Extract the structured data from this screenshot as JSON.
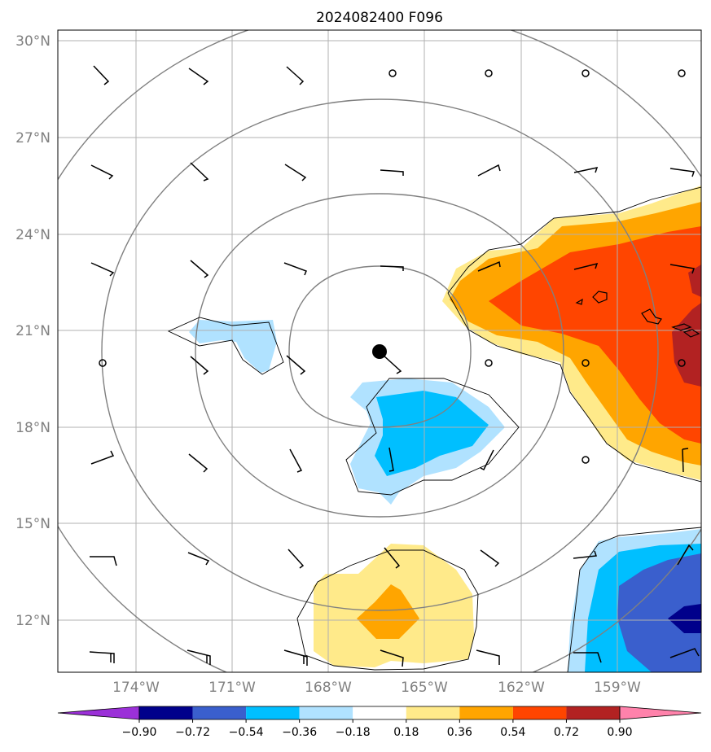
{
  "title": "2024082400 F096",
  "lat_labels": [
    "30°N",
    "27°N",
    "24°N",
    "21°N",
    "18°N",
    "15°N",
    "12°N"
  ],
  "lon_labels": [
    "174°W",
    "171°W",
    "168°W",
    "165°W",
    "162°W",
    "159°W"
  ],
  "map": {
    "lon_range": [
      -176.5,
      -156.5
    ],
    "lat_range": [
      10.5,
      30.3
    ],
    "storm_center": {
      "lon": -166.3,
      "lat": 20.3
    },
    "range_ring_radii_deg": [
      2.8,
      5.6,
      8.4,
      11.2,
      14.0
    ]
  },
  "colorbar": {
    "ticks": [
      "−0.90",
      "−0.72",
      "−0.54",
      "−0.36",
      "−0.18",
      "0.18",
      "0.36",
      "0.54",
      "0.72",
      "0.90"
    ],
    "colors": [
      "#9b30d8",
      "#00008b",
      "#3a5fcd",
      "#00bfff",
      "#b0e2ff",
      "#ffffff",
      "#ffea8a",
      "#ffa500",
      "#ff4500",
      "#b22222",
      "#ff82ab"
    ]
  },
  "colors": {
    "ring": "#808080",
    "grid": "#b0b0b0",
    "barb": "#000000"
  }
}
